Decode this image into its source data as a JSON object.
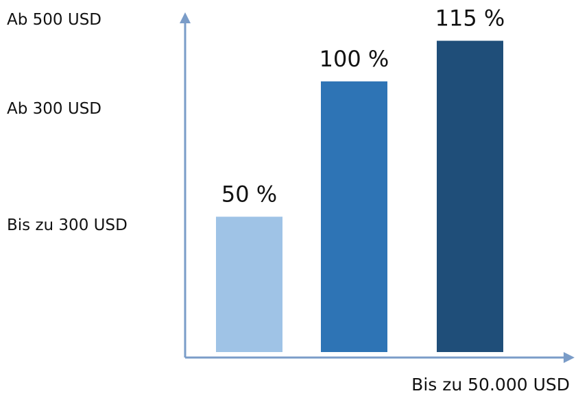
{
  "chart_data": {
    "type": "bar",
    "title": "",
    "xlabel": "Bis zu 50.000 USD",
    "ylabel": "",
    "y_axis_labels": [
      "Ab 500 USD",
      "Ab 300 USD",
      "Bis zu 300 USD"
    ],
    "categories": [
      "",
      "",
      ""
    ],
    "values": [
      50,
      100,
      115
    ],
    "data_labels": [
      "50 %",
      "100 %",
      "115 %"
    ],
    "colors": [
      "#9fc3e6",
      "#2e74b5",
      "#1f4e79"
    ],
    "axis_color": "#7a9cc8",
    "grid": false,
    "legend": "none",
    "ylim": [
      0,
      125
    ]
  }
}
